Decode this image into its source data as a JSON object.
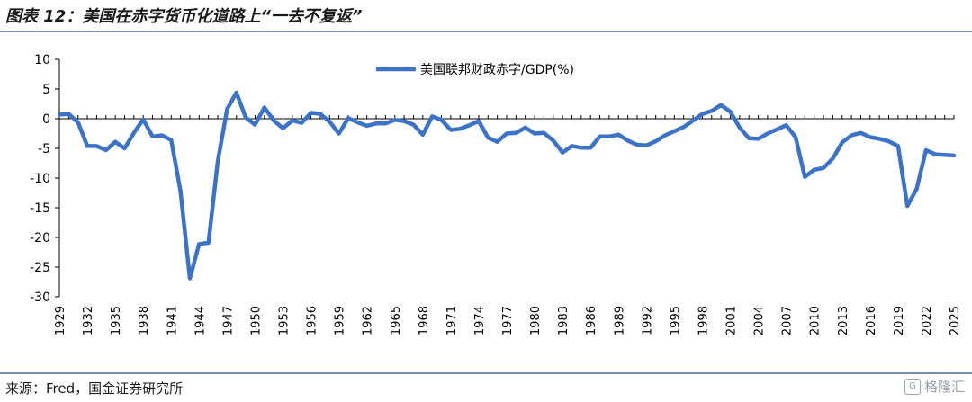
{
  "title": "图表 12：美国在赤字货币化道路上“一去不复返”",
  "source": "来源：Fred，国金证券研究所",
  "watermark": {
    "icon": "gelonghui-logo-icon",
    "text": "格隆汇"
  },
  "colors": {
    "line": "#3b73c8",
    "axis": "#000000",
    "rule": "#7a90a8"
  },
  "chart_data": {
    "type": "line",
    "title": "",
    "xlabel": "",
    "ylabel": "",
    "ylim": [
      -30,
      10
    ],
    "yticks": [
      10,
      5,
      0,
      -5,
      -10,
      -15,
      -20,
      -25,
      -30
    ],
    "xticks": [
      1929,
      1932,
      1935,
      1938,
      1941,
      1944,
      1947,
      1950,
      1953,
      1956,
      1959,
      1962,
      1965,
      1968,
      1971,
      1974,
      1977,
      1980,
      1983,
      1986,
      1989,
      1992,
      1995,
      1998,
      2001,
      2004,
      2007,
      2010,
      2013,
      2016,
      2019,
      2022,
      2025
    ],
    "grid": false,
    "legend_position": "top-center",
    "x": [
      1929,
      1930,
      1931,
      1932,
      1933,
      1934,
      1935,
      1936,
      1937,
      1938,
      1939,
      1940,
      1941,
      1942,
      1943,
      1944,
      1945,
      1946,
      1947,
      1948,
      1949,
      1950,
      1951,
      1952,
      1953,
      1954,
      1955,
      1956,
      1957,
      1958,
      1959,
      1960,
      1961,
      1962,
      1963,
      1964,
      1965,
      1966,
      1967,
      1968,
      1969,
      1970,
      1971,
      1972,
      1973,
      1974,
      1975,
      1976,
      1977,
      1978,
      1979,
      1980,
      1981,
      1982,
      1983,
      1984,
      1985,
      1986,
      1987,
      1988,
      1989,
      1990,
      1991,
      1992,
      1993,
      1994,
      1995,
      1996,
      1997,
      1998,
      1999,
      2000,
      2001,
      2002,
      2003,
      2004,
      2005,
      2006,
      2007,
      2008,
      2009,
      2010,
      2011,
      2012,
      2013,
      2014,
      2015,
      2016,
      2017,
      2018,
      2019,
      2020,
      2021,
      2022,
      2023,
      2024,
      2025
    ],
    "series": [
      {
        "name": "美国联邦财政赤字/GDP(%)",
        "values": [
          0.7,
          0.8,
          -0.6,
          -4.6,
          -4.6,
          -5.3,
          -3.9,
          -5.0,
          -2.4,
          -0.1,
          -3.0,
          -2.8,
          -3.6,
          -12.2,
          -26.9,
          -21.1,
          -20.9,
          -7.2,
          1.6,
          4.4,
          0.2,
          -1.0,
          1.9,
          -0.3,
          -1.6,
          -0.3,
          -0.7,
          1.0,
          0.8,
          -0.5,
          -2.5,
          0.1,
          -0.6,
          -1.2,
          -0.8,
          -0.8,
          -0.2,
          -0.4,
          -1.0,
          -2.7,
          0.4,
          -0.2,
          -1.9,
          -1.7,
          -1.1,
          -0.4,
          -3.2,
          -3.9,
          -2.5,
          -2.4,
          -1.5,
          -2.5,
          -2.4,
          -3.7,
          -5.7,
          -4.6,
          -4.9,
          -4.9,
          -3.0,
          -3.0,
          -2.7,
          -3.7,
          -4.4,
          -4.5,
          -3.8,
          -2.8,
          -2.1,
          -1.4,
          -0.3,
          0.8,
          1.3,
          2.3,
          1.2,
          -1.5,
          -3.3,
          -3.4,
          -2.5,
          -1.8,
          -1.1,
          -3.1,
          -9.8,
          -8.6,
          -8.3,
          -6.7,
          -4.0,
          -2.8,
          -2.4,
          -3.1,
          -3.4,
          -3.8,
          -4.6,
          -14.7,
          -11.8,
          -5.3,
          -6.0,
          -6.1,
          -6.2
        ]
      }
    ]
  }
}
